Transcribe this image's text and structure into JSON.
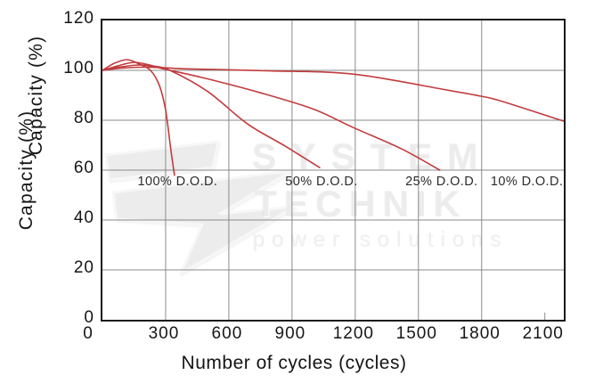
{
  "watermark": {
    "line1": "SYSTEM",
    "line2": "TECHNIK",
    "line3": "power solutions",
    "logo": "lightning-bolt"
  },
  "chart_data": {
    "type": "line",
    "title": "",
    "xlabel": "Number of cycles (cycles)",
    "ylabel": "Capacity (%)",
    "ylabel_duplicate": "Capacity (%)",
    "xlim": [
      0,
      2190
    ],
    "ylim": [
      0,
      120
    ],
    "x_tick_labels": [
      0,
      300,
      600,
      900,
      1200,
      1500,
      1800,
      2100
    ],
    "y_tick_labels": [
      0,
      20,
      40,
      60,
      80,
      100,
      120
    ],
    "x_gridlines": [
      300,
      600,
      900,
      1200,
      1500,
      1800
    ],
    "x_minor_tick": 2100,
    "y_gridlines": [
      20,
      40,
      60,
      80,
      100
    ],
    "grid_color": "#8a8a8a",
    "axis_color": "#1b1b1b",
    "line_color": "#c23b3d",
    "legend_position": "inline-labels",
    "series": [
      {
        "name": "100% D.O.D.",
        "label": "100% D.O.D.",
        "label_x": 357,
        "label_y": 55.5,
        "points": [
          [
            0,
            100
          ],
          [
            55,
            102.8
          ],
          [
            118,
            104.3
          ],
          [
            175,
            102.5
          ],
          [
            228,
            100
          ],
          [
            270,
            94
          ],
          [
            300,
            84
          ],
          [
            325,
            68
          ],
          [
            342,
            58
          ]
        ]
      },
      {
        "name": "50% D.O.D.",
        "label": "50% D.O.D.",
        "label_x": 1040,
        "label_y": 55.5,
        "points": [
          [
            0,
            100
          ],
          [
            70,
            101.7
          ],
          [
            152,
            103.2
          ],
          [
            240,
            101.8
          ],
          [
            321,
            100
          ],
          [
            500,
            91.5
          ],
          [
            689,
            78.5
          ],
          [
            870,
            69.5
          ],
          [
            1031,
            61
          ]
        ]
      },
      {
        "name": "25% D.O.D.",
        "label": "25% D.O.D.",
        "label_x": 1610,
        "label_y": 55.5,
        "points": [
          [
            0,
            100
          ],
          [
            80,
            101.3
          ],
          [
            194,
            102.1
          ],
          [
            321,
            100
          ],
          [
            490,
            96.8
          ],
          [
            750,
            91
          ],
          [
            1000,
            84.5
          ],
          [
            1187,
            77.2
          ],
          [
            1420,
            68.5
          ],
          [
            1601,
            60
          ]
        ]
      },
      {
        "name": "10% D.O.D.",
        "label": "10% D.O.D.",
        "label_x": 2015,
        "label_y": 55.5,
        "points": [
          [
            0,
            100
          ],
          [
            90,
            100.9
          ],
          [
            225,
            101.3
          ],
          [
            400,
            100.6
          ],
          [
            800,
            99.8
          ],
          [
            1190,
            98.5
          ],
          [
            1610,
            92.5
          ],
          [
            1800,
            89.6
          ],
          [
            1900,
            87.5
          ],
          [
            2190,
            79.6
          ]
        ]
      }
    ]
  }
}
